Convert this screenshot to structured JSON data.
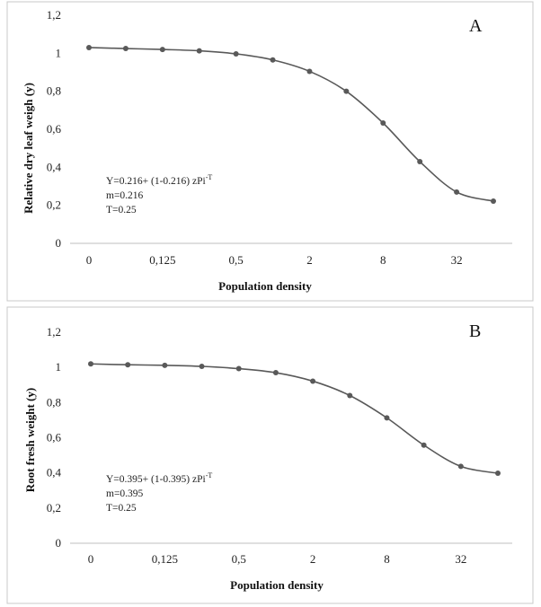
{
  "chart_data": [
    {
      "type": "line",
      "panel_label": "A",
      "ylabel": "Relative dry leaf weigh (y)",
      "xlabel": "Population density",
      "ylim": [
        0,
        1.2
      ],
      "y_ticks": [
        "0",
        "0,2",
        "0,4",
        "0,6",
        "0,8",
        "1",
        "1,2"
      ],
      "x_tick_labels": [
        "0",
        "0,125",
        "0,5",
        "2",
        "8",
        "32"
      ],
      "annotation": [
        "Y=0.216+ (1-0.216) zPi-T",
        "m=0.216",
        "T=0.25"
      ],
      "series": [
        {
          "values": [
            1.03,
            1.025,
            1.02,
            1.013,
            0.997,
            0.965,
            0.905,
            0.8,
            0.633,
            0.43,
            0.27,
            0.222
          ]
        }
      ],
      "color": "#595959",
      "grid": false
    },
    {
      "type": "line",
      "panel_label": "B",
      "ylabel": "Root fresh weight (y)",
      "xlabel": "Population density",
      "ylim": [
        0,
        1.2
      ],
      "y_ticks": [
        "0",
        "0,2",
        "0,4",
        "0,6",
        "0,8",
        "1",
        "1,2"
      ],
      "x_tick_labels": [
        "0",
        "0,125",
        "0,5",
        "2",
        "8",
        "32"
      ],
      "annotation": [
        "Y=0.395+ (1-0.395) zPi-T",
        "m=0.395",
        "T=0.25"
      ],
      "series": [
        {
          "values": [
            1.02,
            1.015,
            1.012,
            1.006,
            0.993,
            0.97,
            0.922,
            0.84,
            0.713,
            0.558,
            0.437,
            0.398
          ]
        }
      ],
      "color": "#595959",
      "grid": false
    }
  ]
}
